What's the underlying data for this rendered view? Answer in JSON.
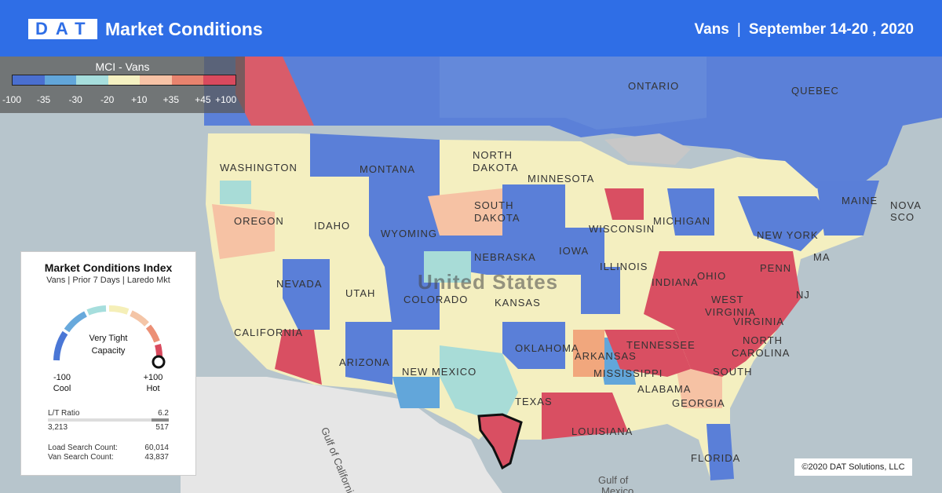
{
  "header": {
    "logo": "DAT",
    "title": "Market Conditions",
    "equipment": "Vans",
    "date_range": "September 14-20 , 2020"
  },
  "legend": {
    "title": "MCI - Vans",
    "swatches": [
      "#4a6fd0",
      "#62a6da",
      "#a6dedd",
      "#f5f1c2",
      "#f7c3a6",
      "#e8836e",
      "#d94a5e"
    ],
    "ticks": [
      "-100",
      "-35",
      "-30",
      "-20",
      "+10",
      "+35",
      "+45",
      "+100"
    ]
  },
  "card": {
    "title": "Market Conditions Index",
    "subtitle": "Vans | Prior 7 Days | Laredo Mkt",
    "gauge_text_1": "Very Tight",
    "gauge_text_2": "Capacity",
    "gauge_value": 100,
    "min_value": "-100",
    "min_label": "Cool",
    "max_value": "+100",
    "max_label": "Hot",
    "lt_label": "L/T Ratio",
    "lt_value": "6.2",
    "loads": "3,213",
    "trucks": "517",
    "load_search_label": "Load Search Count:",
    "load_search_value": "60,014",
    "van_search_label": "Van Search Count:",
    "van_search_value": "43,837"
  },
  "map_labels": {
    "washington": "WASHINGTON",
    "oregon": "OREGON",
    "idaho": "IDAHO",
    "montana": "MONTANA",
    "wyoming": "WYOMING",
    "north": "NORTH",
    "dakota": "DAKOTA",
    "south": "SOUTH",
    "dakota2": "DAKOTA",
    "minnesota": "MINNESOTA",
    "nebraska": "NEBRASKA",
    "iowa": "IOWA",
    "wisconsin": "WISCONSIN",
    "michigan": "MICHIGAN",
    "illinois": "ILLINOIS",
    "indiana": "INDIANA",
    "ohio": "OHIO",
    "penn": "PENN",
    "newyork": "NEW YORK",
    "maine": "MAINE",
    "novasco": "NOVA SCO",
    "nevada": "NEVADA",
    "utah": "UTAH",
    "colorado": "COLORADO",
    "kansas": "KANSAS",
    "california": "CALIFORNIA",
    "arizona": "ARIZONA",
    "newmexico": "NEW MEXICO",
    "oklahoma": "OKLAHOMA",
    "arkansas": "ARKANSAS",
    "tennessee": "TENNESSEE",
    "mississippi": "MISSISSIPPI",
    "alabama": "ALABAMA",
    "georgia": "GEORGIA",
    "texas": "TEXAS",
    "louisiana": "LOUISIANA",
    "florida": "FLORIDA",
    "west": "WEST",
    "virginia": "VIRGINIA",
    "virginia2": "VIRGINIA",
    "north_c": "NORTH",
    "carolina": "CAROLINA",
    "south_c": "SOUTH",
    "nj": "NJ",
    "ma": "MA",
    "ontario": "ONTARIO",
    "quebec": "QUEBEC",
    "united_states": "United States",
    "gulf_california": "Gulf of California",
    "gulf_mexico_1": "Gulf of",
    "gulf_mexico_2": "Mexico"
  },
  "copyright": "©2020 DAT Solutions, LLC"
}
